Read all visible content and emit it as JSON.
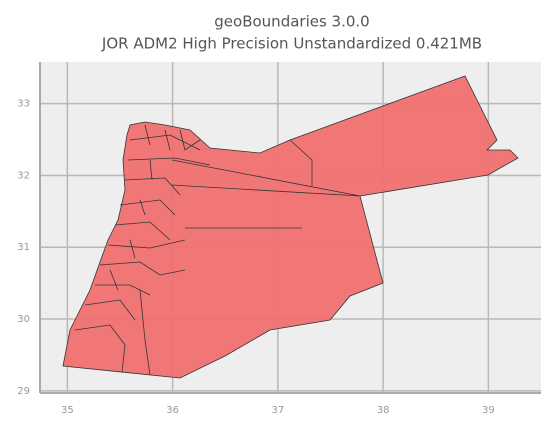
{
  "chart_data": {
    "type": "map",
    "title": "geoBoundaries 3.0.0",
    "subtitle": "JOR ADM2 High Precision Unstandardized 0.421MB",
    "xlim": [
      34.74,
      39.5
    ],
    "ylim": [
      28.97,
      33.58
    ],
    "xticks": [
      35,
      36,
      37,
      38,
      39
    ],
    "yticks": [
      29,
      30,
      31,
      32,
      33
    ],
    "grid": true,
    "color": "#f07070"
  }
}
